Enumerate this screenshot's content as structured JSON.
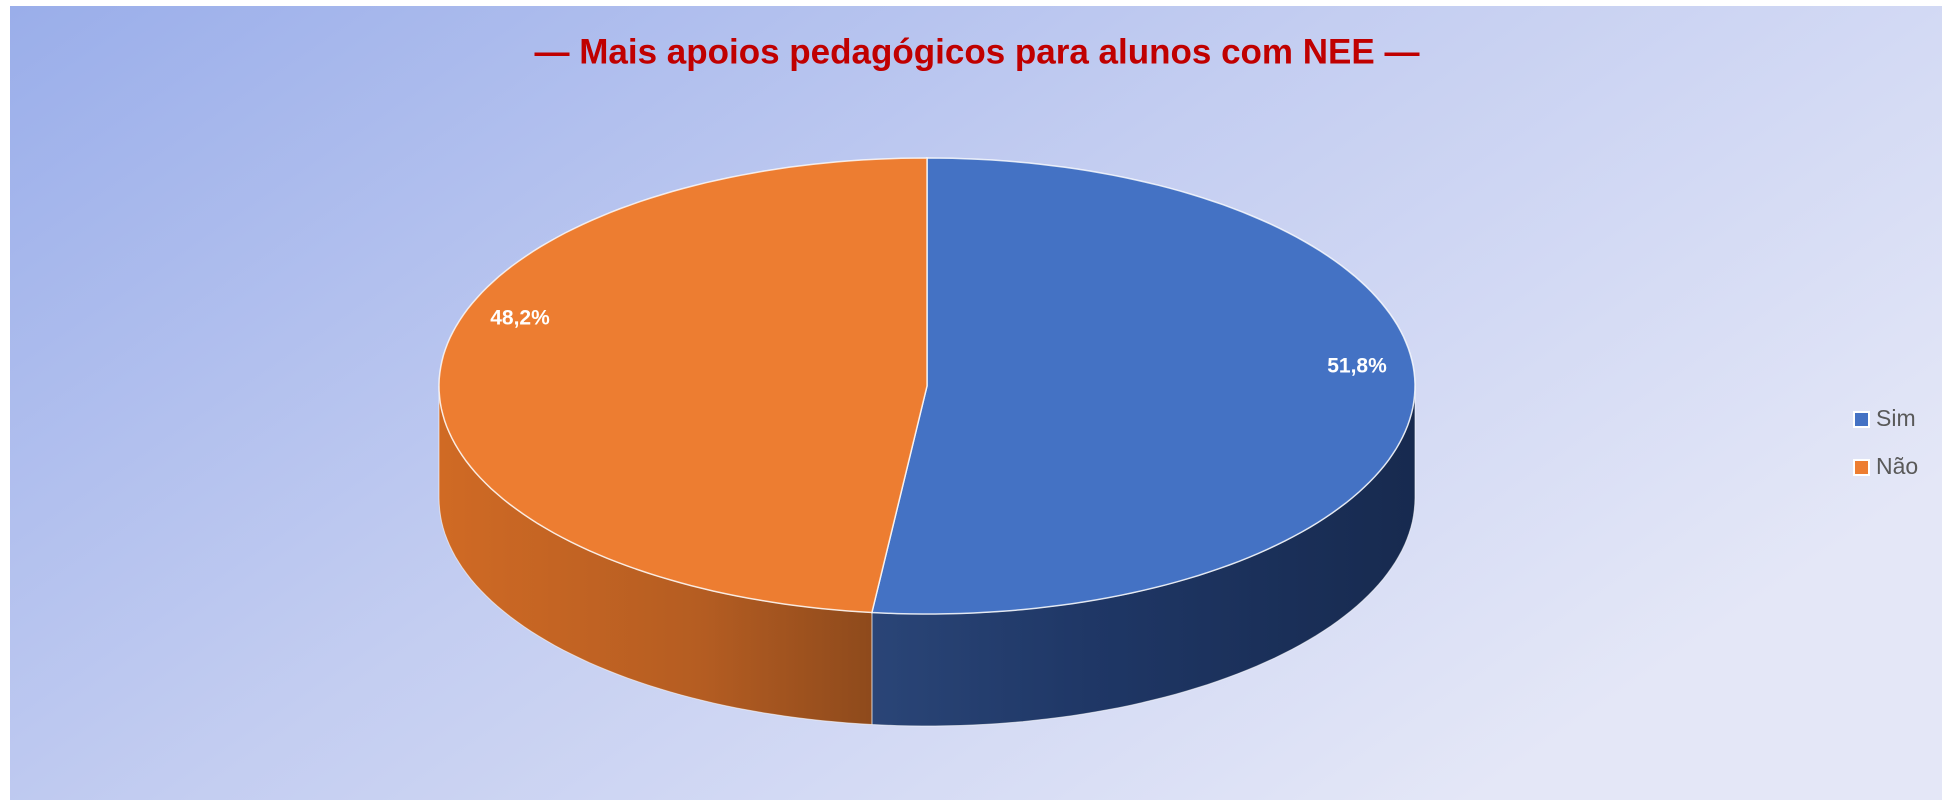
{
  "chart_data": {
    "type": "pie3d",
    "title": "— Mais apoios pedagógicos para alunos com NEE —",
    "categories": [
      "Sim",
      "Não"
    ],
    "values": [
      51.8,
      48.2
    ],
    "value_labels": [
      "51,8%",
      "48,2%"
    ],
    "colors": [
      "#4472c4",
      "#ed7d31"
    ],
    "legend": "right"
  }
}
